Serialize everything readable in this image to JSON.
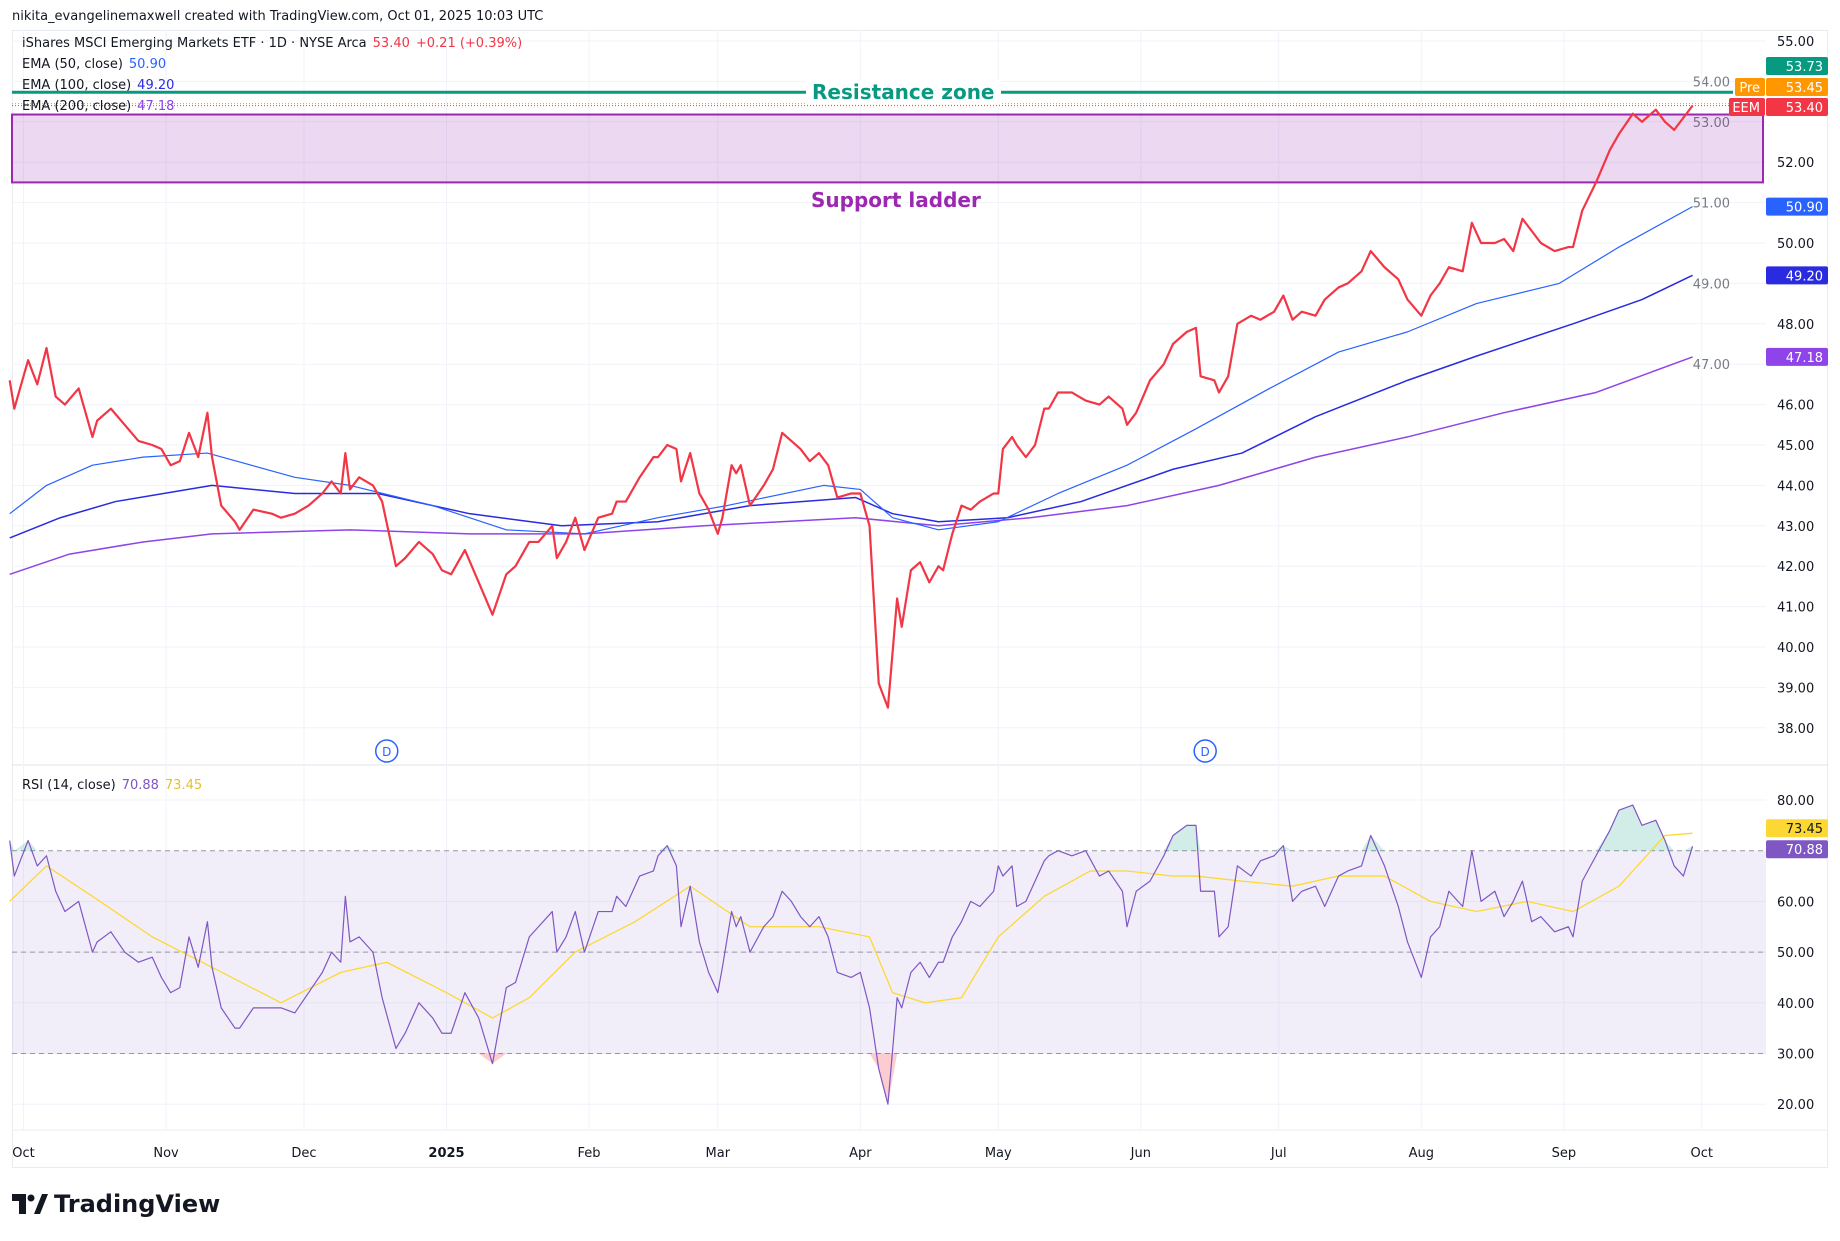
{
  "header": {
    "credit": "nikita_evangelinemaxwell created with TradingView.com, Oct 01, 2025 10:03 UTC"
  },
  "legend": {
    "symbol": "iShares MSCI Emerging Markets ETF · 1D · NYSE Arca",
    "price": "53.40",
    "change": "+0.21 (+0.39%)",
    "ema50_label": "EMA (50, close)",
    "ema50_value": "50.90",
    "ema100_label": "EMA (100, close)",
    "ema100_value": "49.20",
    "ema200_label": "EMA (200, close)",
    "ema200_value": "47.18",
    "rsi_label": "RSI (14, close)",
    "rsi_value": "70.88",
    "rsi_ma_value": "73.45"
  },
  "annotations": {
    "resistance": "Resistance zone",
    "support": "Support ladder",
    "dividend_marker": "D"
  },
  "badges": {
    "resistance_price": "53.73",
    "pre_label": "Pre",
    "pre_price": "53.45",
    "ticker": "EEM",
    "last_price": "53.40",
    "ema50": "50.90",
    "ema100": "49.20",
    "ema200": "47.18",
    "rsi_ma": "73.45",
    "rsi": "70.88"
  },
  "logo": {
    "text": "TradingView"
  },
  "colors": {
    "price": "#f23645",
    "ema50": "#2962ff",
    "ema100": "#2a2ae0",
    "ema200": "#8e44e8",
    "resistance": "#089981",
    "support": "#9c27b0",
    "rsi": "#7e57c2",
    "rsi_ma": "#fdd835",
    "pre": "#ff9800"
  },
  "chart_data": [
    {
      "type": "line",
      "title": "iShares MSCI Emerging Markets ETF · 1D · NYSE Arca",
      "x_unit": "days since 2024-10-01",
      "xlim": [
        -3,
        400
      ],
      "ylim": [
        37.5,
        55.2
      ],
      "y_ticks": [
        "55.00",
        "54.00",
        "53.00",
        "52.00",
        "51.00",
        "50.00",
        "49.00",
        "48.00",
        "47.00",
        "46.00",
        "45.00",
        "44.00",
        "43.00",
        "42.00",
        "41.00",
        "40.00",
        "39.00",
        "38.00"
      ],
      "x_ticks": [
        {
          "label": "Oct",
          "day": 0
        },
        {
          "label": "Nov",
          "day": 31
        },
        {
          "label": "Dec",
          "day": 61
        },
        {
          "label": "2025",
          "day": 92
        },
        {
          "label": "Feb",
          "day": 123
        },
        {
          "label": "Mar",
          "day": 151
        },
        {
          "label": "Apr",
          "day": 182
        },
        {
          "label": "May",
          "day": 212
        },
        {
          "label": "Jun",
          "day": 243
        },
        {
          "label": "Jul",
          "day": 273
        },
        {
          "label": "Aug",
          "day": 304
        },
        {
          "label": "Sep",
          "day": 335
        },
        {
          "label": "Oct",
          "day": 365
        }
      ],
      "dividend_days": [
        79,
        257
      ],
      "resistance_level": 53.73,
      "support_zone": [
        51.5,
        53.18
      ],
      "pre_market": 53.45,
      "days": [
        -3,
        -2,
        1,
        3,
        5,
        7,
        9,
        12,
        15,
        16,
        19,
        22,
        25,
        28,
        30,
        32,
        34,
        36,
        38,
        40,
        41,
        43,
        46,
        47,
        50,
        54,
        56,
        59,
        62,
        65,
        67,
        69,
        70,
        71,
        73,
        76,
        78,
        81,
        83,
        86,
        89,
        91,
        93,
        96,
        99,
        102,
        105,
        107,
        110,
        112,
        115,
        116,
        118,
        120,
        122,
        125,
        128,
        129,
        131,
        134,
        137,
        138,
        140,
        142,
        143,
        145,
        147,
        149,
        151,
        152,
        154,
        155,
        156,
        158,
        161,
        163,
        165,
        167,
        169,
        171,
        173,
        175,
        177,
        180,
        182,
        184,
        186,
        188,
        190,
        191,
        193,
        195,
        197,
        199,
        200,
        202,
        204,
        206,
        208,
        211,
        212,
        213,
        215,
        216,
        218,
        220,
        222,
        223,
        225,
        228,
        231,
        234,
        236,
        239,
        240,
        242,
        245,
        248,
        250,
        253,
        255,
        256,
        259,
        260,
        262,
        264,
        267,
        269,
        272,
        274,
        276,
        278,
        281,
        283,
        286,
        288,
        291,
        293,
        296,
        299,
        301,
        304,
        306,
        308,
        310,
        313,
        315,
        317,
        320,
        322,
        324,
        326,
        328,
        330,
        333,
        336,
        337,
        339,
        342,
        345,
        347,
        350,
        352,
        355,
        357,
        359,
        361,
        363
      ],
      "series": [
        {
          "name": "EEM close",
          "values": [
            46.6,
            45.9,
            47.1,
            46.5,
            47.4,
            46.2,
            46.0,
            46.4,
            45.2,
            45.6,
            45.9,
            45.5,
            45.1,
            45.0,
            44.9,
            44.5,
            44.6,
            45.3,
            44.7,
            45.8,
            44.7,
            43.5,
            43.1,
            42.9,
            43.4,
            43.3,
            43.2,
            43.3,
            43.5,
            43.8,
            44.1,
            43.8,
            44.8,
            43.9,
            44.2,
            44.0,
            43.6,
            42.0,
            42.2,
            42.6,
            42.3,
            41.9,
            41.8,
            42.4,
            41.6,
            40.8,
            41.8,
            42.0,
            42.6,
            42.6,
            43.0,
            42.2,
            42.6,
            43.2,
            42.4,
            43.2,
            43.3,
            43.6,
            43.6,
            44.2,
            44.7,
            44.7,
            45.0,
            44.9,
            44.1,
            44.8,
            43.8,
            43.4,
            42.8,
            43.2,
            44.5,
            44.3,
            44.5,
            43.5,
            44.0,
            44.4,
            45.3,
            45.1,
            44.9,
            44.6,
            44.8,
            44.5,
            43.7,
            43.8,
            43.8,
            43.0,
            39.1,
            38.5,
            41.2,
            40.5,
            41.9,
            42.1,
            41.6,
            42.0,
            41.9,
            42.8,
            43.5,
            43.4,
            43.6,
            43.8,
            43.8,
            44.9,
            45.2,
            45.0,
            44.7,
            45.0,
            45.9,
            45.9,
            46.3,
            46.3,
            46.1,
            46.0,
            46.2,
            45.9,
            45.5,
            45.8,
            46.6,
            47.0,
            47.5,
            47.8,
            47.9,
            46.7,
            46.6,
            46.3,
            46.7,
            48.0,
            48.2,
            48.1,
            48.3,
            48.7,
            48.1,
            48.3,
            48.2,
            48.6,
            48.9,
            49.0,
            49.3,
            49.8,
            49.4,
            49.1,
            48.6,
            48.2,
            48.7,
            49.0,
            49.4,
            49.3,
            50.5,
            50.0,
            50.0,
            50.1,
            49.8,
            50.6,
            50.3,
            50.0,
            49.8,
            49.9,
            49.9,
            50.8,
            51.5,
            52.3,
            52.7,
            53.2,
            53.0,
            53.3,
            53.0,
            52.8,
            53.1,
            53.4
          ]
        },
        {
          "name": "EMA (50, close)",
          "points": [
            [
              -3,
              43.3
            ],
            [
              5,
              44.0
            ],
            [
              15,
              44.5
            ],
            [
              26,
              44.7
            ],
            [
              40,
              44.8
            ],
            [
              59,
              44.2
            ],
            [
              71,
              44.0
            ],
            [
              89,
              43.5
            ],
            [
              105,
              42.9
            ],
            [
              122,
              42.8
            ],
            [
              138,
              43.2
            ],
            [
              153,
              43.5
            ],
            [
              174,
              44.0
            ],
            [
              182,
              43.9
            ],
            [
              189,
              43.2
            ],
            [
              199,
              42.9
            ],
            [
              212,
              43.1
            ],
            [
              225,
              43.8
            ],
            [
              240,
              44.5
            ],
            [
              255,
              45.4
            ],
            [
              271,
              46.4
            ],
            [
              286,
              47.3
            ],
            [
              301,
              47.8
            ],
            [
              316,
              48.5
            ],
            [
              334,
              49.0
            ],
            [
              347,
              49.9
            ],
            [
              363,
              50.9
            ]
          ]
        },
        {
          "name": "EMA (100, close)",
          "points": [
            [
              -3,
              42.7
            ],
            [
              8,
              43.2
            ],
            [
              20,
              43.6
            ],
            [
              41,
              44.0
            ],
            [
              59,
              43.8
            ],
            [
              77,
              43.8
            ],
            [
              97,
              43.3
            ],
            [
              117,
              43.0
            ],
            [
              138,
              43.1
            ],
            [
              158,
              43.5
            ],
            [
              181,
              43.7
            ],
            [
              189,
              43.3
            ],
            [
              199,
              43.1
            ],
            [
              214,
              43.2
            ],
            [
              230,
              43.6
            ],
            [
              250,
              44.4
            ],
            [
              265,
              44.8
            ],
            [
              281,
              45.7
            ],
            [
              301,
              46.6
            ],
            [
              316,
              47.2
            ],
            [
              337,
              48.0
            ],
            [
              352,
              48.6
            ],
            [
              363,
              49.2
            ]
          ]
        },
        {
          "name": "EMA (200, close)",
          "points": [
            [
              -3,
              41.8
            ],
            [
              10,
              42.3
            ],
            [
              26,
              42.6
            ],
            [
              41,
              42.8
            ],
            [
              71,
              42.9
            ],
            [
              97,
              42.8
            ],
            [
              122,
              42.8
            ],
            [
              148,
              43.0
            ],
            [
              181,
              43.2
            ],
            [
              199,
              43.0
            ],
            [
              219,
              43.2
            ],
            [
              240,
              43.5
            ],
            [
              260,
              44.0
            ],
            [
              281,
              44.7
            ],
            [
              301,
              45.2
            ],
            [
              322,
              45.8
            ],
            [
              342,
              46.3
            ],
            [
              363,
              47.18
            ]
          ]
        }
      ]
    },
    {
      "type": "line",
      "title": "RSI (14, close)",
      "ylim": [
        16,
        84
      ],
      "y_ticks": [
        "80.00",
        "60.00",
        "50.00",
        "40.00",
        "30.00",
        "20.00"
      ],
      "bands": {
        "upper": 70,
        "middle": 50,
        "lower": 30
      },
      "series": [
        {
          "name": "RSI",
          "values": [
            72,
            65,
            72,
            67,
            69,
            62,
            58,
            60,
            50,
            52,
            54,
            50,
            48,
            49,
            45,
            42,
            43,
            53,
            47,
            56,
            47,
            39,
            35,
            35,
            39,
            39,
            39,
            38,
            42,
            46,
            50,
            48,
            61,
            52,
            53,
            50,
            41,
            31,
            34,
            40,
            37,
            34,
            34,
            42,
            37,
            28,
            43,
            44,
            53,
            55,
            58,
            50,
            53,
            58,
            50,
            58,
            58,
            61,
            59,
            65,
            66,
            69,
            71,
            67,
            55,
            63,
            52,
            46,
            42,
            47,
            58,
            55,
            57,
            50,
            55,
            57,
            62,
            60,
            57,
            55,
            57,
            53,
            46,
            45,
            46,
            39,
            27,
            20,
            41,
            39,
            46,
            48,
            45,
            48,
            48,
            53,
            56,
            60,
            59,
            62,
            67,
            65,
            67,
            59,
            60,
            64,
            68,
            69,
            70,
            69,
            70,
            65,
            66,
            62,
            55,
            62,
            64,
            69,
            73,
            75,
            75,
            62,
            62,
            53,
            55,
            67,
            65,
            68,
            69,
            71,
            60,
            62,
            63,
            59,
            65,
            66,
            67,
            73,
            67,
            59,
            52,
            45,
            53,
            55,
            62,
            59,
            70,
            60,
            62,
            57,
            60,
            64,
            56,
            57,
            54,
            55,
            53,
            64,
            69,
            74,
            78,
            79,
            75,
            76,
            72,
            67,
            65,
            70.88
          ]
        },
        {
          "name": "RSI-based MA",
          "points": [
            [
              -3,
              60
            ],
            [
              5,
              67
            ],
            [
              15,
              61
            ],
            [
              28,
              53
            ],
            [
              41,
              47
            ],
            [
              56,
              40
            ],
            [
              69,
              46
            ],
            [
              79,
              48
            ],
            [
              92,
              42
            ],
            [
              102,
              37
            ],
            [
              110,
              41
            ],
            [
              120,
              50
            ],
            [
              133,
              56
            ],
            [
              145,
              63
            ],
            [
              158,
              55
            ],
            [
              173,
              55
            ],
            [
              184,
              53
            ],
            [
              189,
              42
            ],
            [
              196,
              40
            ],
            [
              204,
              41
            ],
            [
              212,
              53
            ],
            [
              222,
              61
            ],
            [
              232,
              66
            ],
            [
              240,
              66
            ],
            [
              250,
              65
            ],
            [
              255,
              65
            ],
            [
              265,
              64
            ],
            [
              276,
              63
            ],
            [
              286,
              65
            ],
            [
              296,
              65
            ],
            [
              306,
              60
            ],
            [
              316,
              58
            ],
            [
              327,
              60
            ],
            [
              337,
              58
            ],
            [
              347,
              63
            ],
            [
              357,
              73
            ],
            [
              363,
              73.45
            ]
          ]
        }
      ]
    }
  ]
}
